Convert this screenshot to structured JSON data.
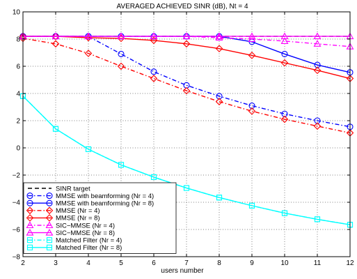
{
  "chart_data": {
    "type": "line",
    "title": "AVERAGED ACHIEVED SINR (dB), Nt = 4",
    "xlabel": "users number",
    "ylabel": "",
    "xlim": [
      2,
      12
    ],
    "ylim": [
      -8,
      10
    ],
    "x_ticks": [
      "2",
      "3",
      "4",
      "5",
      "6",
      "7",
      "8",
      "9",
      "10",
      "11",
      "12"
    ],
    "y_ticks": [
      "−8",
      "−6",
      "−4",
      "−2",
      "0",
      "2",
      "4",
      "6",
      "8",
      "10"
    ],
    "grid": true,
    "legend_position": "lower-left",
    "x": [
      2,
      3,
      4,
      5,
      6,
      7,
      8,
      9,
      10,
      11,
      12
    ],
    "series": [
      {
        "name": "SINR target",
        "color": "#000000",
        "dash": "dashed",
        "marker": "none",
        "values": [
          8.2,
          8.2,
          8.2,
          8.2,
          8.2,
          8.2,
          8.2,
          8.2,
          8.2,
          8.2,
          8.2
        ]
      },
      {
        "name": "MMSE with beamforming (Nr = 4)",
        "color": "#0000ff",
        "dash": "dashdot",
        "marker": "circle",
        "values": [
          8.2,
          8.2,
          8.2,
          6.9,
          5.6,
          4.6,
          3.8,
          3.1,
          2.5,
          2.0,
          1.55
        ]
      },
      {
        "name": "MMSE with beamforming (Nr = 8)",
        "color": "#0000ff",
        "dash": "solid",
        "marker": "circle",
        "values": [
          8.2,
          8.2,
          8.2,
          8.2,
          8.2,
          8.2,
          8.2,
          7.8,
          6.9,
          6.1,
          5.55
        ]
      },
      {
        "name": "MMSE (Nr = 4)",
        "color": "#ff0000",
        "dash": "dashdot",
        "marker": "diamond",
        "values": [
          8.05,
          7.65,
          6.95,
          6.0,
          5.1,
          4.2,
          3.4,
          2.7,
          2.1,
          1.6,
          1.1
        ]
      },
      {
        "name": "MMSE (Nr = 8)",
        "color": "#ff0000",
        "dash": "solid",
        "marker": "diamond",
        "values": [
          8.2,
          8.2,
          8.1,
          8.05,
          7.9,
          7.65,
          7.3,
          6.8,
          6.25,
          5.7,
          5.1
        ]
      },
      {
        "name": "SIC−MMSE (Nr = 4)",
        "color": "#ff00ff",
        "dash": "dashdot",
        "marker": "triangle",
        "values": [
          8.2,
          8.2,
          8.2,
          8.2,
          8.2,
          8.2,
          8.1,
          8.0,
          7.85,
          7.65,
          7.45
        ]
      },
      {
        "name": "SIC−MMSE (Nr = 8)",
        "color": "#ff00ff",
        "dash": "solid",
        "marker": "triangle",
        "values": [
          8.2,
          8.2,
          8.2,
          8.2,
          8.2,
          8.2,
          8.2,
          8.2,
          8.2,
          8.2,
          8.2
        ]
      },
      {
        "name": "Matched Filter (Nr = 4)",
        "color": "#00ffff",
        "dash": "dashdot",
        "marker": "square",
        "values": [
          3.8,
          1.4,
          -0.1,
          -1.25,
          -2.15,
          -2.95,
          -3.65,
          -4.25,
          -4.8,
          -5.25,
          -5.65
        ]
      },
      {
        "name": "Matched Filter (Nr = 8)",
        "color": "#00ffff",
        "dash": "solid",
        "marker": "square",
        "values": [
          3.8,
          1.4,
          -0.1,
          -1.25,
          -2.15,
          -2.95,
          -3.65,
          -4.25,
          -4.8,
          -5.25,
          -5.65
        ]
      }
    ]
  }
}
